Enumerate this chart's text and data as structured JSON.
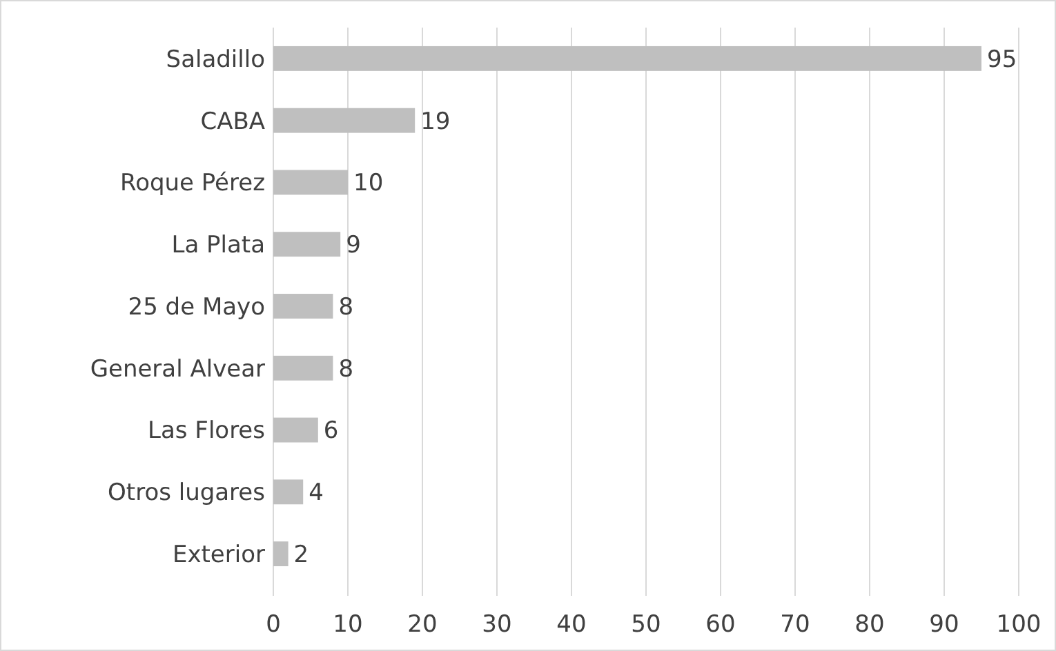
{
  "chart_data": {
    "type": "bar",
    "orientation": "horizontal",
    "categories": [
      "Saladillo",
      "CABA",
      "Roque Pérez",
      "La Plata",
      "25 de Mayo",
      "General Alvear",
      "Las Flores",
      "Otros lugares",
      "Exterior"
    ],
    "values": [
      95,
      19,
      10,
      9,
      8,
      8,
      6,
      4,
      2
    ],
    "color": "#bfbfbf",
    "xlim": [
      0,
      100
    ],
    "xticks": [
      0,
      10,
      20,
      30,
      40,
      50,
      60,
      70,
      80,
      90,
      100
    ],
    "grid": "x",
    "data_labels": true
  }
}
